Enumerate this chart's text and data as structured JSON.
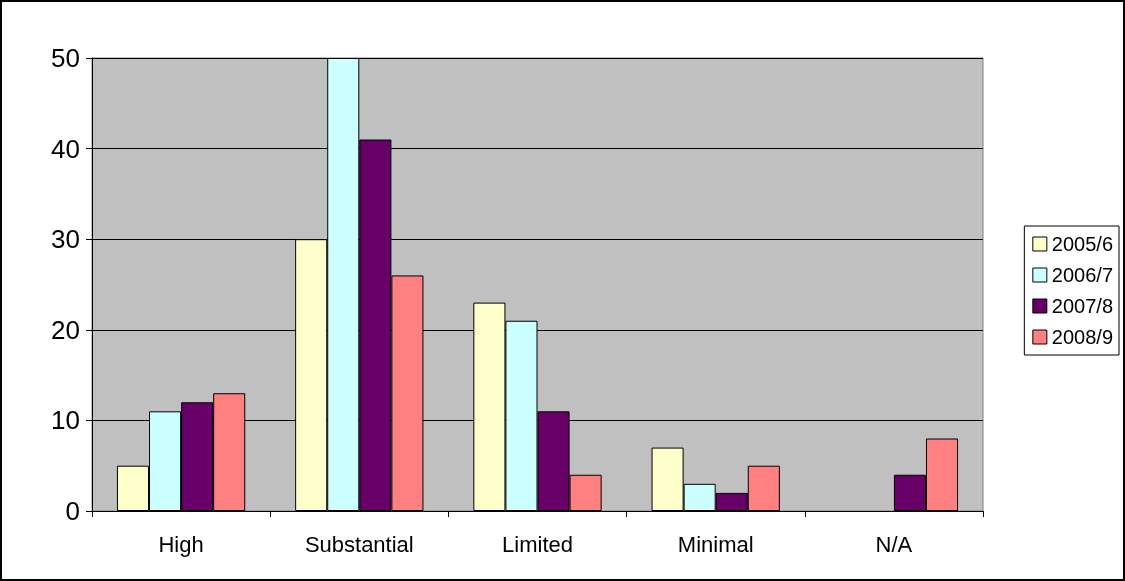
{
  "chart_data": {
    "type": "bar",
    "categories": [
      "High",
      "Substantial",
      "Limited",
      "Minimal",
      "N/A"
    ],
    "series": [
      {
        "name": "2005/6",
        "color": "#ffffcc",
        "values": [
          5,
          30,
          23,
          7,
          null
        ]
      },
      {
        "name": "2006/7",
        "color": "#ccffff",
        "values": [
          11,
          50,
          21,
          3,
          null
        ]
      },
      {
        "name": "2007/8",
        "color": "#660066",
        "values": [
          12,
          41,
          11,
          2,
          4
        ]
      },
      {
        "name": "2008/9",
        "color": "#ff8080",
        "values": [
          13,
          26,
          4,
          5,
          8
        ]
      }
    ],
    "ylim": [
      0,
      50
    ],
    "yticks": [
      0,
      10,
      20,
      30,
      40,
      50
    ],
    "grid": "y",
    "legend": "right"
  }
}
